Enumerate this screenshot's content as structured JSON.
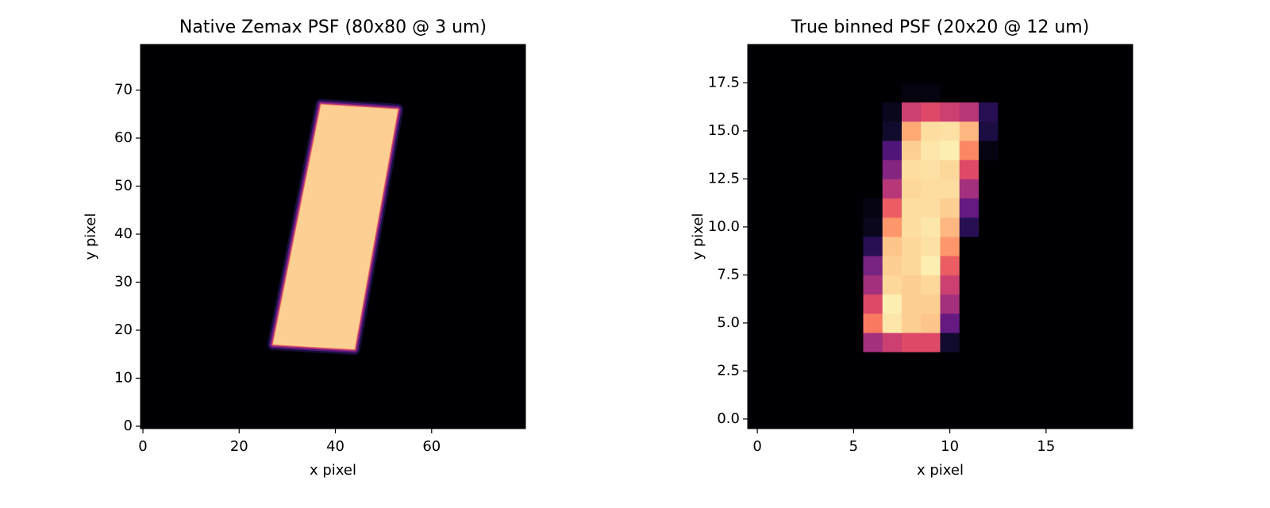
{
  "chart_data": [
    {
      "type": "heatmap",
      "title": "Native Zemax PSF (80x80 @ 3 um)",
      "xlabel": "x pixel",
      "ylabel": "y pixel",
      "xlim": [
        -0.5,
        79.5
      ],
      "ylim": [
        -0.5,
        79.5
      ],
      "xticks": [
        0,
        20,
        40,
        60
      ],
      "yticks": [
        0,
        10,
        20,
        30,
        40,
        50,
        60,
        70
      ],
      "colormap": "magma",
      "regions": [
        {
          "corners": [
            [
              27,
              17
            ],
            [
              44,
              16
            ],
            [
              53,
              66
            ],
            [
              37,
              67
            ]
          ],
          "value": 0.9
        }
      ]
    },
    {
      "type": "heatmap",
      "title": "True binned PSF (20x20 @ 12 um)",
      "xlabel": "x pixel",
      "ylabel": "y pixel",
      "xlim": [
        -0.5,
        19.5
      ],
      "ylim": [
        -0.5,
        19.5
      ],
      "xticks": [
        0,
        5,
        10,
        15
      ],
      "yticks": [
        {
          "value": 0,
          "label": "0.0"
        },
        2.5,
        {
          "value": 5,
          "label": "5.0"
        },
        7.5,
        {
          "value": 10,
          "label": "10.0"
        },
        12.5,
        {
          "value": 15,
          "label": "15.0"
        },
        17.5
      ],
      "colormap": "magma",
      "values": [
        [
          0,
          0,
          0,
          0,
          0,
          0,
          0,
          0,
          0,
          0,
          0,
          0,
          0,
          0,
          0,
          0,
          0,
          0,
          0,
          0
        ],
        [
          0,
          0,
          0,
          0,
          0,
          0,
          0,
          0,
          0,
          0,
          0,
          0,
          0,
          0,
          0,
          0,
          0,
          0,
          0,
          0
        ],
        [
          0,
          0,
          0,
          0,
          0,
          0,
          0,
          0,
          0,
          0,
          0,
          0,
          0,
          0,
          0,
          0,
          0,
          0,
          0,
          0
        ],
        [
          0,
          0,
          0,
          0,
          0,
          0,
          0,
          0,
          0,
          0,
          0,
          0,
          0,
          0,
          0,
          0,
          0,
          0,
          0,
          0
        ],
        [
          0,
          0,
          0,
          0,
          0,
          0,
          0.45,
          0.55,
          0.6,
          0.6,
          0.08,
          0,
          0,
          0,
          0,
          0,
          0,
          0,
          0,
          0
        ],
        [
          0,
          0,
          0,
          0,
          0,
          0,
          0.72,
          0.95,
          0.9,
          0.88,
          0.3,
          0,
          0,
          0,
          0,
          0,
          0,
          0,
          0,
          0
        ],
        [
          0,
          0,
          0,
          0,
          0,
          0,
          0.6,
          0.97,
          0.9,
          0.9,
          0.45,
          0,
          0,
          0,
          0,
          0,
          0,
          0,
          0,
          0
        ],
        [
          0,
          0,
          0,
          0,
          0,
          0,
          0.45,
          0.92,
          0.9,
          0.92,
          0.55,
          0,
          0,
          0,
          0,
          0,
          0,
          0,
          0,
          0
        ],
        [
          0,
          0,
          0,
          0,
          0,
          0,
          0.35,
          0.9,
          0.92,
          0.97,
          0.65,
          0,
          0,
          0,
          0,
          0,
          0,
          0,
          0,
          0
        ],
        [
          0,
          0,
          0,
          0,
          0,
          0,
          0.15,
          0.88,
          0.92,
          0.94,
          0.78,
          0,
          0,
          0,
          0,
          0,
          0,
          0,
          0,
          0
        ],
        [
          0,
          0,
          0,
          0,
          0,
          0,
          0.05,
          0.78,
          0.93,
          0.95,
          0.85,
          0.15,
          0,
          0,
          0,
          0,
          0,
          0,
          0,
          0
        ],
        [
          0,
          0,
          0,
          0,
          0,
          0,
          0.03,
          0.65,
          0.93,
          0.93,
          0.9,
          0.3,
          0,
          0,
          0,
          0,
          0,
          0,
          0,
          0
        ],
        [
          0,
          0,
          0,
          0,
          0,
          0,
          0,
          0.5,
          0.92,
          0.93,
          0.93,
          0.45,
          0,
          0,
          0,
          0,
          0,
          0,
          0,
          0
        ],
        [
          0,
          0,
          0,
          0,
          0,
          0,
          0,
          0.38,
          0.93,
          0.94,
          0.92,
          0.6,
          0,
          0,
          0,
          0,
          0,
          0,
          0,
          0
        ],
        [
          0,
          0,
          0,
          0,
          0,
          0,
          0,
          0.25,
          0.9,
          0.95,
          0.97,
          0.75,
          0.03,
          0,
          0,
          0,
          0,
          0,
          0,
          0
        ],
        [
          0,
          0,
          0,
          0,
          0,
          0,
          0,
          0.08,
          0.82,
          0.93,
          0.94,
          0.85,
          0.12,
          0,
          0,
          0,
          0,
          0,
          0,
          0
        ],
        [
          0,
          0,
          0,
          0,
          0,
          0,
          0,
          0.05,
          0.55,
          0.6,
          0.55,
          0.5,
          0.15,
          0,
          0,
          0,
          0,
          0,
          0,
          0
        ],
        [
          0,
          0,
          0,
          0,
          0,
          0,
          0,
          0,
          0.02,
          0.02,
          0,
          0,
          0,
          0,
          0,
          0,
          0,
          0,
          0,
          0
        ],
        [
          0,
          0,
          0,
          0,
          0,
          0,
          0,
          0,
          0,
          0,
          0,
          0,
          0,
          0,
          0,
          0,
          0,
          0,
          0,
          0
        ],
        [
          0,
          0,
          0,
          0,
          0,
          0,
          0,
          0,
          0,
          0,
          0,
          0,
          0,
          0,
          0,
          0,
          0,
          0,
          0,
          0
        ]
      ]
    }
  ]
}
